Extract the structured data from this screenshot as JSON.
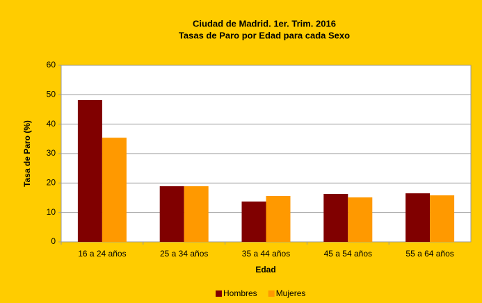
{
  "chart_data": {
    "type": "bar",
    "title": "Ciudad de Madrid. 1er. Trim. 2016",
    "subtitle": "Tasas de Paro por Edad para cada Sexo",
    "xlabel": "Edad",
    "ylabel": "Tasa de Paro (%)",
    "categories": [
      "16 a 24 años",
      "25 a 34 años",
      "35 a 44 años",
      "45 a 54 años",
      "55 a 64 años"
    ],
    "series": [
      {
        "name": "Hombres",
        "color": "#800000",
        "values": [
          48.2,
          18.9,
          13.7,
          16.3,
          16.5
        ]
      },
      {
        "name": "Mujeres",
        "color": "#FF9900",
        "values": [
          35.4,
          18.9,
          15.6,
          15.1,
          15.8
        ]
      }
    ],
    "ylim": [
      0,
      60
    ],
    "yticks": [
      0,
      10,
      20,
      30,
      40,
      50,
      60
    ],
    "grid": true,
    "legend": "bottom"
  }
}
